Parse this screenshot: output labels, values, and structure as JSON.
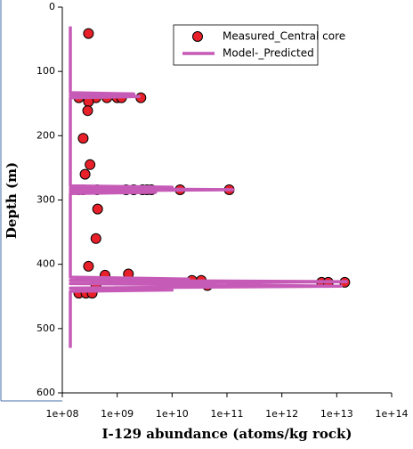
{
  "chart_data": {
    "type": "scatter",
    "x_label": "I-129 abundance (atoms/kg rock)",
    "y_label": "Depth (m)",
    "xscale": "log",
    "yaxis_inverted": true,
    "xlim": [
      100000000,
      100000000000000
    ],
    "ylim": [
      0,
      600
    ],
    "xticks": [
      {
        "value": 100000000,
        "label": "1e+08"
      },
      {
        "value": 1000000000,
        "label": "1e+09"
      },
      {
        "value": 10000000000,
        "label": "1e+10"
      },
      {
        "value": 100000000000,
        "label": "1e+11"
      },
      {
        "value": 1000000000000,
        "label": "1e+12"
      },
      {
        "value": 10000000000000,
        "label": "1e+13"
      },
      {
        "value": 100000000000000,
        "label": "1e+14"
      }
    ],
    "yticks": [
      0,
      100,
      200,
      300,
      400,
      500,
      600
    ],
    "series": [
      {
        "name": "Measured_Central core",
        "type": "scatter",
        "color": "#e8202a",
        "x": [
          300000000,
          200000000,
          300000000,
          410000000,
          650000000,
          1000000000,
          1200000000,
          2700000000,
          300000000,
          290000000,
          240000000,
          320000000,
          260000000,
          200000000,
          240000000,
          430000000,
          1450000000,
          2000000000,
          2900000000,
          3500000000,
          4200000000,
          14000000000,
          110000000000,
          440000000,
          410000000,
          300000000,
          600000000,
          1600000000,
          23000000000,
          34000000000,
          5300000000000,
          7000000000000,
          14000000000000,
          410000000,
          44000000000,
          200000000,
          270000000,
          350000000
        ],
        "y": [
          41,
          141,
          141,
          141,
          141,
          141,
          141,
          141,
          147,
          161,
          204,
          245,
          260,
          284,
          284,
          284,
          284,
          284,
          284,
          284,
          284,
          284,
          284,
          314,
          360,
          403,
          417,
          415,
          425,
          425,
          428,
          428,
          428,
          433,
          433,
          445,
          445,
          445
        ]
      },
      {
        "name": "Model-_Predicted",
        "type": "line",
        "color": "#c65bb7",
        "x": [
          140000000,
          140000000,
          2000000000,
          140000000,
          2500000000,
          140000000,
          140000000,
          10000000000,
          140000000,
          130000000000,
          140000000,
          5000000000,
          140000000,
          140000000,
          20000000000,
          140000000,
          15000000000000,
          140000000,
          12000000000000,
          140000000,
          10000000000,
          140000000,
          140000000
        ],
        "y": [
          30,
          133,
          135,
          137,
          139,
          141,
          278,
          280,
          282,
          284,
          286,
          288,
          290,
          420,
          423,
          425,
          427,
          430,
          434,
          437,
          440,
          442,
          530
        ]
      }
    ],
    "legend": "upper right"
  }
}
